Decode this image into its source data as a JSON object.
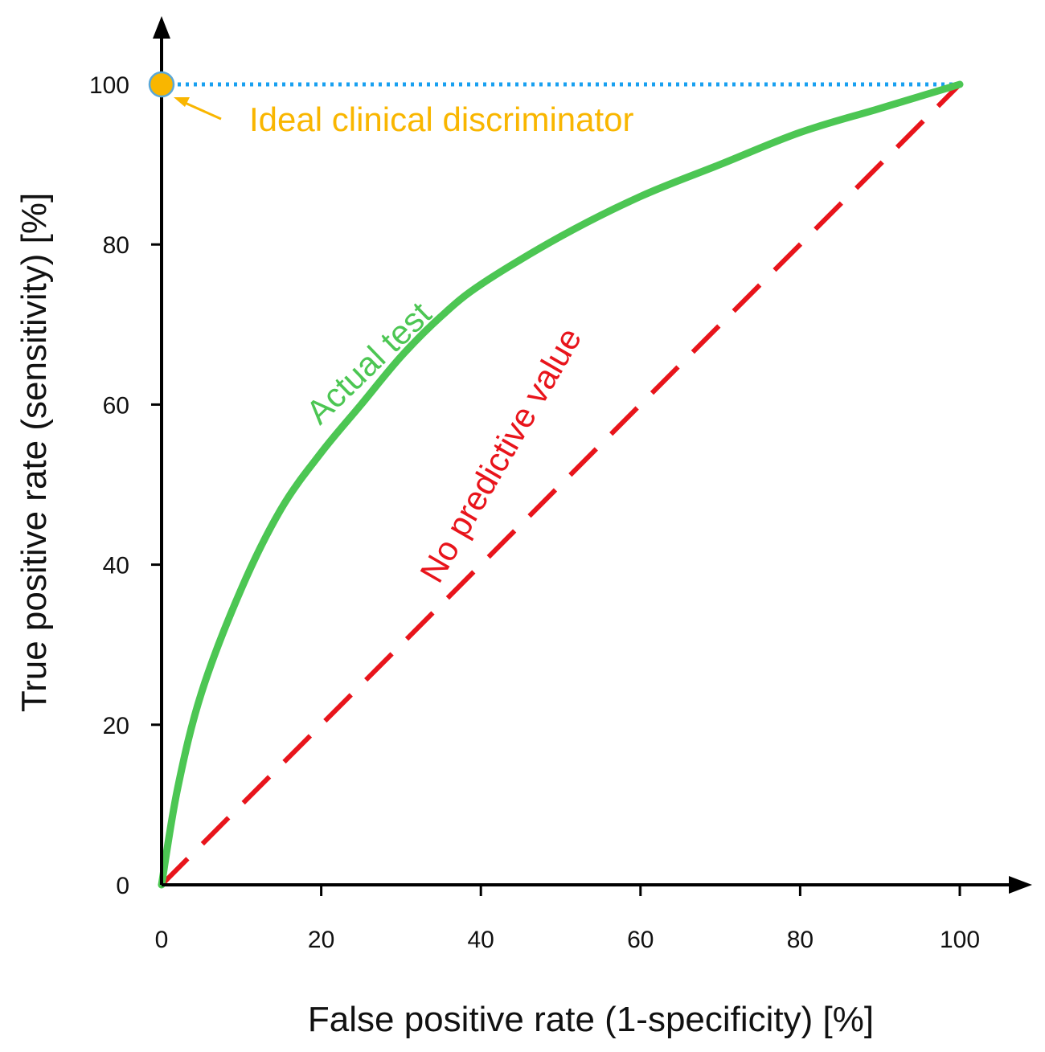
{
  "chart_data": {
    "type": "line",
    "title": "",
    "xlabel": "False positive rate (1-specificity) [%]",
    "ylabel": "True positive rate (sensitivity)  [%]",
    "xlim": [
      0,
      100
    ],
    "ylim": [
      0,
      100
    ],
    "x_ticks": [
      "0",
      "20",
      "40",
      "60",
      "80",
      "100"
    ],
    "y_ticks": [
      "0",
      "20",
      "40",
      "60",
      "80",
      "100"
    ],
    "grid": false,
    "series": [
      {
        "name": "Actual test",
        "color": "#4cc653",
        "style": "solid",
        "x": [
          0,
          2,
          5,
          10,
          15,
          20,
          25,
          30,
          35,
          40,
          50,
          60,
          70,
          80,
          90,
          100
        ],
        "y": [
          0,
          12,
          24,
          37,
          47,
          54,
          60,
          66,
          71,
          75,
          81,
          86,
          90,
          94,
          97,
          100
        ]
      },
      {
        "name": "No predictive value",
        "color": "#e8141b",
        "style": "dashed",
        "x": [
          0,
          100
        ],
        "y": [
          0,
          100
        ]
      },
      {
        "name": "Ideal clinical discriminator",
        "color": "#19a0f0",
        "style": "dotted",
        "x": [
          0,
          100
        ],
        "y": [
          100,
          100
        ]
      }
    ],
    "points": [
      {
        "name": "Ideal clinical discriminator",
        "x": 0,
        "y": 100,
        "color": "#f9b600"
      }
    ],
    "annotations": [
      {
        "text": "Ideal clinical discriminator",
        "color": "#f9b600"
      },
      {
        "text": "Actual test",
        "color": "#4cc653"
      },
      {
        "text": "No predictive value",
        "color": "#e8141b"
      }
    ]
  }
}
